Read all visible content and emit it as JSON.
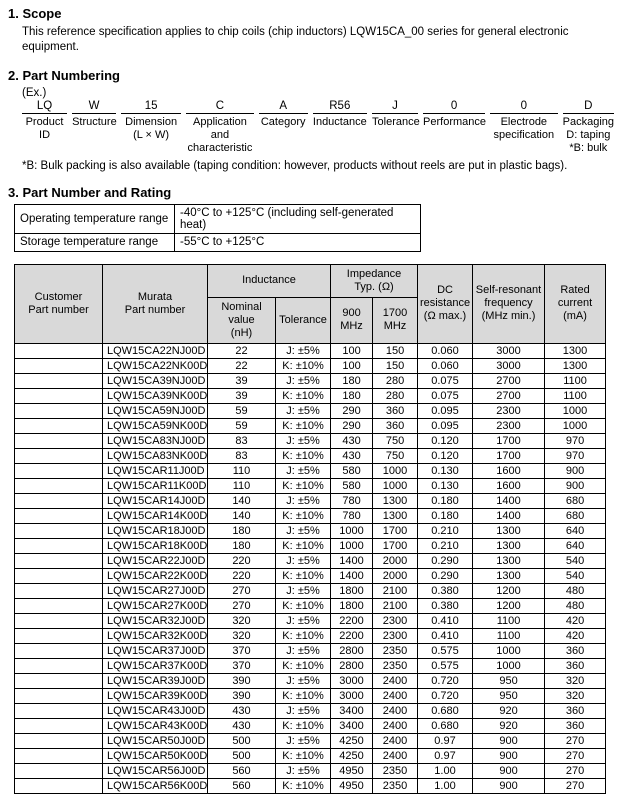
{
  "scope": {
    "heading": "1. Scope",
    "body": "This reference specification applies to chip coils (chip inductors) LQW15CA_00 series for general electronic equipment."
  },
  "part_numbering": {
    "heading": "2. Part Numbering",
    "example_label": "(Ex.)",
    "codes": [
      {
        "code": "LQ",
        "label": "Product\nID"
      },
      {
        "code": "W",
        "label": "Structure"
      },
      {
        "code": "15",
        "label": "Dimension\n(L × W)"
      },
      {
        "code": "C",
        "label": "Application\nand\ncharacteristic"
      },
      {
        "code": "A",
        "label": "Category"
      },
      {
        "code": "R56",
        "label": "Inductance"
      },
      {
        "code": "J",
        "label": "Tolerance"
      },
      {
        "code": "0",
        "label": "Performance"
      },
      {
        "code": "0",
        "label": "Electrode\nspecification"
      },
      {
        "code": "D",
        "label": "Packaging\nD: taping\n*B: bulk"
      }
    ],
    "note": "*B: Bulk packing is also available (taping condition: however, products without reels are put in plastic bags)."
  },
  "rating": {
    "heading": "3. Part Number and Rating",
    "temperature": [
      {
        "label": "Operating temperature range",
        "value": "-40°C to +125°C (including self-generated heat)"
      },
      {
        "label": "Storage temperature range",
        "value": "-55°C to +125°C"
      }
    ],
    "table": {
      "headers": {
        "customer": "Customer\nPart number",
        "murata": "Murata\nPart number",
        "inductance": "Inductance",
        "impedance": "Impedance\nTyp. (Ω)",
        "nominal": "Nominal\nvalue\n(nH)",
        "tolerance": "Tolerance",
        "mhz900": "900\nMHz",
        "mhz1700": "1700\nMHz",
        "dc_resistance": "DC\nresistance\n(Ω max.)",
        "self_resonant": "Self-resonant\nfrequency\n(MHz min.)",
        "rated_current": "Rated\ncurrent\n(mA)"
      },
      "rows": [
        [
          "",
          "LQW15CA22NJ00D",
          "22",
          "J: ±5%",
          "100",
          "150",
          "0.060",
          "3000",
          "1300"
        ],
        [
          "",
          "LQW15CA22NK00D",
          "22",
          "K: ±10%",
          "100",
          "150",
          "0.060",
          "3000",
          "1300"
        ],
        [
          "",
          "LQW15CA39NJ00D",
          "39",
          "J: ±5%",
          "180",
          "280",
          "0.075",
          "2700",
          "1100"
        ],
        [
          "",
          "LQW15CA39NK00D",
          "39",
          "K: ±10%",
          "180",
          "280",
          "0.075",
          "2700",
          "1100"
        ],
        [
          "",
          "LQW15CA59NJ00D",
          "59",
          "J: ±5%",
          "290",
          "360",
          "0.095",
          "2300",
          "1000"
        ],
        [
          "",
          "LQW15CA59NK00D",
          "59",
          "K: ±10%",
          "290",
          "360",
          "0.095",
          "2300",
          "1000"
        ],
        [
          "",
          "LQW15CA83NJ00D",
          "83",
          "J: ±5%",
          "430",
          "750",
          "0.120",
          "1700",
          "970"
        ],
        [
          "",
          "LQW15CA83NK00D",
          "83",
          "K: ±10%",
          "430",
          "750",
          "0.120",
          "1700",
          "970"
        ],
        [
          "",
          "LQW15CAR11J00D",
          "110",
          "J: ±5%",
          "580",
          "1000",
          "0.130",
          "1600",
          "900"
        ],
        [
          "",
          "LQW15CAR11K00D",
          "110",
          "K: ±10%",
          "580",
          "1000",
          "0.130",
          "1600",
          "900"
        ],
        [
          "",
          "LQW15CAR14J00D",
          "140",
          "J: ±5%",
          "780",
          "1300",
          "0.180",
          "1400",
          "680"
        ],
        [
          "",
          "LQW15CAR14K00D",
          "140",
          "K: ±10%",
          "780",
          "1300",
          "0.180",
          "1400",
          "680"
        ],
        [
          "",
          "LQW15CAR18J00D",
          "180",
          "J: ±5%",
          "1000",
          "1700",
          "0.210",
          "1300",
          "640"
        ],
        [
          "",
          "LQW15CAR18K00D",
          "180",
          "K: ±10%",
          "1000",
          "1700",
          "0.210",
          "1300",
          "640"
        ],
        [
          "",
          "LQW15CAR22J00D",
          "220",
          "J: ±5%",
          "1400",
          "2000",
          "0.290",
          "1300",
          "540"
        ],
        [
          "",
          "LQW15CAR22K00D",
          "220",
          "K: ±10%",
          "1400",
          "2000",
          "0.290",
          "1300",
          "540"
        ],
        [
          "",
          "LQW15CAR27J00D",
          "270",
          "J: ±5%",
          "1800",
          "2100",
          "0.380",
          "1200",
          "480"
        ],
        [
          "",
          "LQW15CAR27K00D",
          "270",
          "K: ±10%",
          "1800",
          "2100",
          "0.380",
          "1200",
          "480"
        ],
        [
          "",
          "LQW15CAR32J00D",
          "320",
          "J: ±5%",
          "2200",
          "2300",
          "0.410",
          "1100",
          "420"
        ],
        [
          "",
          "LQW15CAR32K00D",
          "320",
          "K: ±10%",
          "2200",
          "2300",
          "0.410",
          "1100",
          "420"
        ],
        [
          "",
          "LQW15CAR37J00D",
          "370",
          "J: ±5%",
          "2800",
          "2350",
          "0.575",
          "1000",
          "360"
        ],
        [
          "",
          "LQW15CAR37K00D",
          "370",
          "K: ±10%",
          "2800",
          "2350",
          "0.575",
          "1000",
          "360"
        ],
        [
          "",
          "LQW15CAR39J00D",
          "390",
          "J: ±5%",
          "3000",
          "2400",
          "0.720",
          "950",
          "320"
        ],
        [
          "",
          "LQW15CAR39K00D",
          "390",
          "K: ±10%",
          "3000",
          "2400",
          "0.720",
          "950",
          "320"
        ],
        [
          "",
          "LQW15CAR43J00D",
          "430",
          "J: ±5%",
          "3400",
          "2400",
          "0.680",
          "920",
          "360"
        ],
        [
          "",
          "LQW15CAR43K00D",
          "430",
          "K: ±10%",
          "3400",
          "2400",
          "0.680",
          "920",
          "360"
        ],
        [
          "",
          "LQW15CAR50J00D",
          "500",
          "J: ±5%",
          "4250",
          "2400",
          "0.97",
          "900",
          "270"
        ],
        [
          "",
          "LQW15CAR50K00D",
          "500",
          "K: ±10%",
          "4250",
          "2400",
          "0.97",
          "900",
          "270"
        ],
        [
          "",
          "LQW15CAR56J00D",
          "560",
          "J: ±5%",
          "4950",
          "2350",
          "1.00",
          "900",
          "270"
        ],
        [
          "",
          "LQW15CAR56K00D",
          "560",
          "K: ±10%",
          "4950",
          "2350",
          "1.00",
          "900",
          "270"
        ]
      ]
    }
  }
}
